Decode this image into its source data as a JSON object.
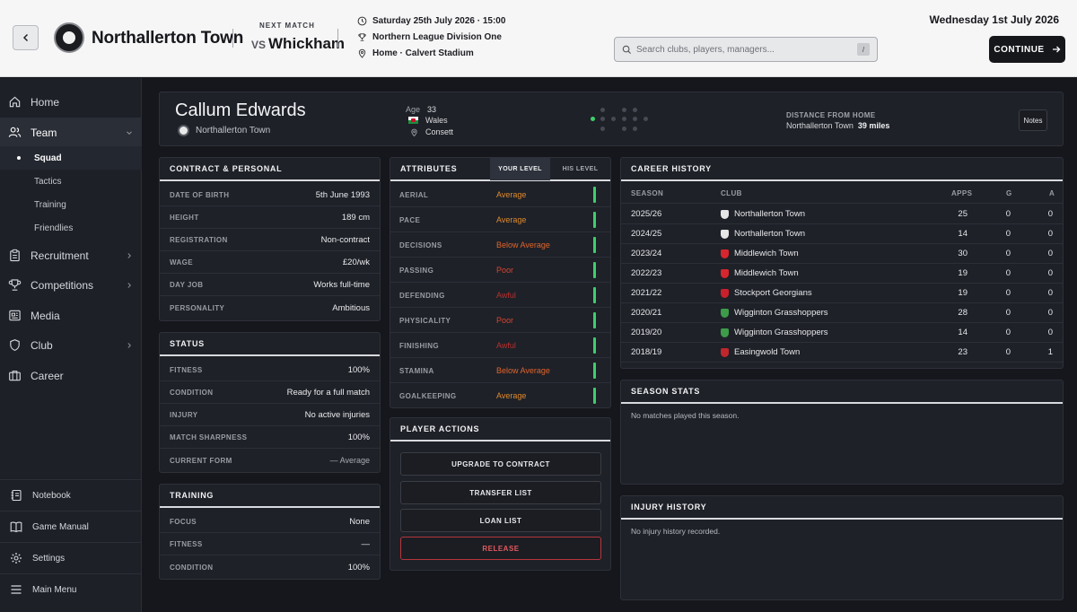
{
  "header": {
    "team_name": "Northallerton Town",
    "next_match_label": "NEXT MATCH",
    "vs": "VS",
    "opponent": "Whickham",
    "match_datetime": "Saturday 25th July 2026 · 15:00",
    "competition": "Northern League Division One",
    "venue": "Home · Calvert Stadium",
    "search_placeholder": "Search clubs, players, managers...",
    "search_shortcut": "/",
    "current_date": "Wednesday 1st July 2026",
    "continue_label": "CONTINUE"
  },
  "sidebar": {
    "items": [
      {
        "label": "Home",
        "icon": "home-icon"
      },
      {
        "label": "Team",
        "icon": "team-icon"
      },
      {
        "label": "Recruitment",
        "icon": "clipboard-icon"
      },
      {
        "label": "Competitions",
        "icon": "trophy-icon"
      },
      {
        "label": "Media",
        "icon": "newspaper-icon"
      },
      {
        "label": "Club",
        "icon": "shield-icon"
      },
      {
        "label": "Career",
        "icon": "briefcase-icon"
      }
    ],
    "team_sub": [
      "Squad",
      "Tactics",
      "Training",
      "Friendlies"
    ],
    "bottom": [
      "Notebook",
      "Game Manual",
      "Settings",
      "Main Menu"
    ]
  },
  "player": {
    "name": "Callum Edwards",
    "club": "Northallerton Town",
    "age_label": "Age",
    "age": "33",
    "nationality": "Wales",
    "birthplace": "Consett",
    "distance_label": "DISTANCE FROM HOME",
    "distance_club": "Northallerton Town",
    "distance_value": "39 miles",
    "notes_label": "Notes"
  },
  "contract": {
    "title": "CONTRACT & PERSONAL",
    "rows": [
      {
        "k": "Date of Birth",
        "v": "5th June 1993"
      },
      {
        "k": "Height",
        "v": "189 cm"
      },
      {
        "k": "Registration",
        "v": "Non-contract"
      },
      {
        "k": "Wage",
        "v": "£20/wk"
      },
      {
        "k": "Day Job",
        "v": "Works full-time"
      },
      {
        "k": "Personality",
        "v": "Ambitious"
      }
    ]
  },
  "status": {
    "title": "STATUS",
    "rows": [
      {
        "k": "Fitness",
        "v": "100%"
      },
      {
        "k": "Condition",
        "v": "Ready for a full match"
      },
      {
        "k": "Injury",
        "v": "No active injuries"
      },
      {
        "k": "Match Sharpness",
        "v": "100%"
      },
      {
        "k": "Current Form",
        "v": "— Average"
      }
    ]
  },
  "training": {
    "title": "TRAINING",
    "rows": [
      {
        "k": "Focus",
        "v": "None"
      },
      {
        "k": "Fitness",
        "v": "—"
      },
      {
        "k": "Condition",
        "v": "100%"
      }
    ]
  },
  "attributes": {
    "title": "ATTRIBUTES",
    "tab_your": "YOUR LEVEL",
    "tab_his": "HIS LEVEL",
    "rows": [
      {
        "k": "AERIAL",
        "v": "Average",
        "color": "#e08a2c"
      },
      {
        "k": "PACE",
        "v": "Average",
        "color": "#e08a2c"
      },
      {
        "k": "DECISIONS",
        "v": "Below Average",
        "color": "#e0642c"
      },
      {
        "k": "PASSING",
        "v": "Poor",
        "color": "#d9452e"
      },
      {
        "k": "DEFENDING",
        "v": "Awful",
        "color": "#b8302f"
      },
      {
        "k": "PHYSICALITY",
        "v": "Poor",
        "color": "#d9452e"
      },
      {
        "k": "FINISHING",
        "v": "Awful",
        "color": "#b8302f"
      },
      {
        "k": "STAMINA",
        "v": "Below Average",
        "color": "#e0642c"
      },
      {
        "k": "GOALKEEPING",
        "v": "Average",
        "color": "#e08a2c"
      }
    ]
  },
  "actions": {
    "title": "PLAYER ACTIONS",
    "upgrade": "UPGRADE TO CONTRACT",
    "transfer": "TRANSFER LIST",
    "loan": "LOAN LIST",
    "release": "RELEASE"
  },
  "career": {
    "title": "CAREER HISTORY",
    "columns": [
      "SEASON",
      "CLUB",
      "APPS",
      "G",
      "A"
    ],
    "rows": [
      {
        "season": "2025/26",
        "club": "Northallerton Town",
        "apps": "25",
        "g": "0",
        "a": "0",
        "crest": "#e6e6e6"
      },
      {
        "season": "2024/25",
        "club": "Northallerton Town",
        "apps": "14",
        "g": "0",
        "a": "0",
        "crest": "#e6e6e6"
      },
      {
        "season": "2023/24",
        "club": "Middlewich Town",
        "apps": "30",
        "g": "0",
        "a": "0",
        "crest": "#d7262e"
      },
      {
        "season": "2022/23",
        "club": "Middlewich Town",
        "apps": "19",
        "g": "0",
        "a": "0",
        "crest": "#d7262e"
      },
      {
        "season": "2021/22",
        "club": "Stockport Georgians",
        "apps": "19",
        "g": "0",
        "a": "0",
        "crest": "#c9202c"
      },
      {
        "season": "2020/21",
        "club": "Wigginton Grasshoppers",
        "apps": "28",
        "g": "0",
        "a": "0",
        "crest": "#3d9b4a"
      },
      {
        "season": "2019/20",
        "club": "Wigginton Grasshoppers",
        "apps": "14",
        "g": "0",
        "a": "0",
        "crest": "#3d9b4a"
      },
      {
        "season": "2018/19",
        "club": "Easingwold Town",
        "apps": "23",
        "g": "0",
        "a": "1",
        "crest": "#c0262d"
      }
    ]
  },
  "season_stats": {
    "title": "SEASON STATS",
    "empty": "No matches played this season."
  },
  "injury_history": {
    "title": "INJURY HISTORY",
    "empty": "No injury history recorded."
  }
}
